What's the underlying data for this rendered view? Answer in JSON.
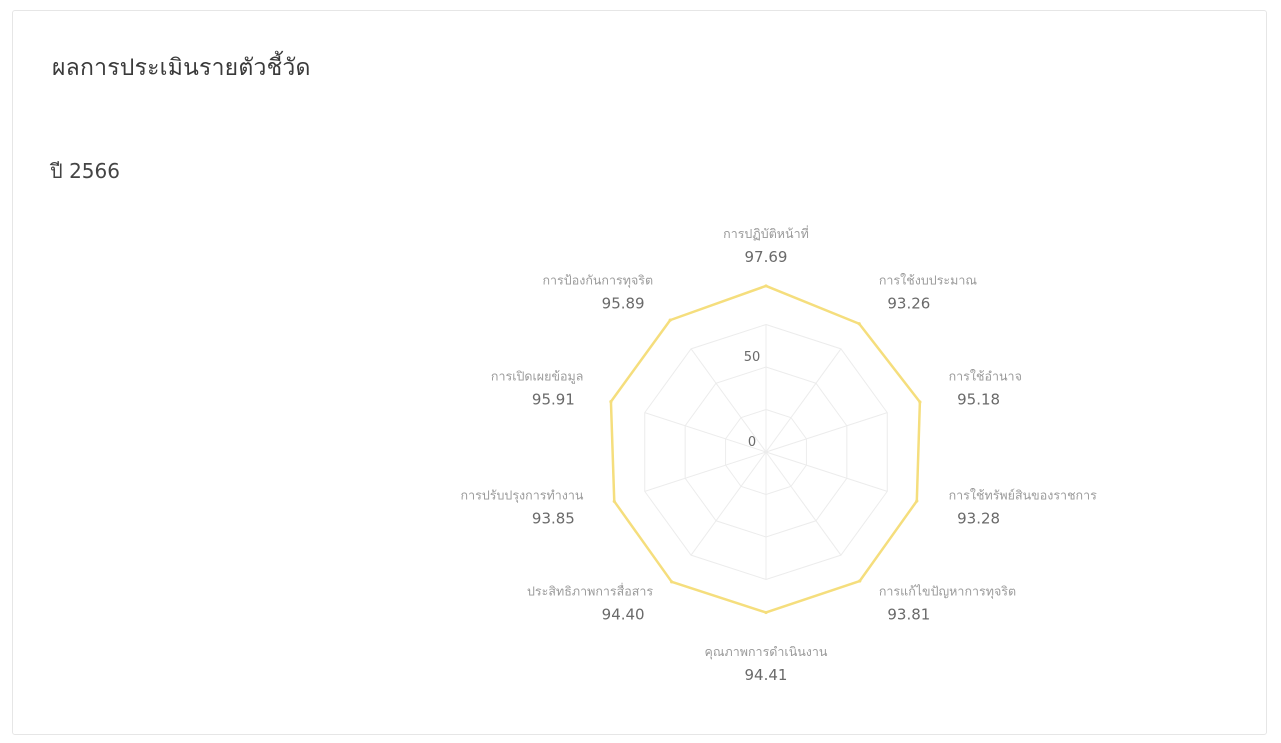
{
  "title": "ผลการประเมินรายตัวชี้วัด",
  "year": {
    "prefix": "ปี",
    "value": "2566"
  },
  "colors": {
    "series": "#f5de7d",
    "grid": "#ececec",
    "label": "#6a6a6a",
    "category": "#9a9a9a"
  },
  "chart_data": {
    "type": "radar",
    "title": "",
    "rmin": 0,
    "rmax": 100,
    "ticks": [
      {
        "value": 0,
        "label": "0"
      },
      {
        "value": 50,
        "label": "50"
      }
    ],
    "grid": true,
    "categories": [
      "การปฏิบัติหน้าที่",
      "การใช้งบประมาณ",
      "การใช้อำนาจ",
      "การใช้ทรัพย์สินของราชการ",
      "การแก้ไขปัญหาการทุจริต",
      "คุณภาพการดำเนินงาน",
      "ประสิทธิภาพการสื่อสาร",
      "การปรับปรุงการทำงาน",
      "การเปิดเผยข้อมูล",
      "การป้องกันการทุจริต"
    ],
    "series": [
      {
        "name": "",
        "values": [
          97.69,
          93.26,
          95.18,
          93.28,
          93.81,
          94.41,
          94.4,
          93.85,
          95.91,
          95.89
        ],
        "labels": [
          "97.69",
          "93.26",
          "95.18",
          "93.28",
          "93.81",
          "94.41",
          "94.40",
          "93.85",
          "95.91",
          "95.89"
        ]
      }
    ]
  }
}
